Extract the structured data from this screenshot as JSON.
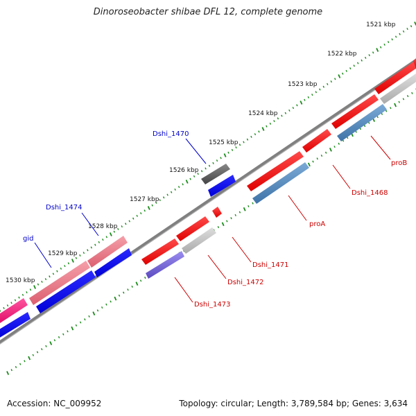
{
  "title": "Dinoroseobacter shibae DFL 12, complete genome",
  "footer": {
    "accession": "Accession: NC_009952",
    "genome_info": "Topology: circular; Length: 3,789,584 bp; Genes: 3,634"
  },
  "ruler_labels": [
    "1521 kbp",
    "1522 kbp",
    "1523 kbp",
    "1524 kbp",
    "1525 kbp",
    "1526 kbp",
    "1527 kbp",
    "1528 kbp",
    "1529 kbp",
    "1530 kbp"
  ],
  "gene_labels": [
    "Dshi_1470",
    "Dshi_1474",
    "gid",
    "proB",
    "Dshi_1468",
    "proA",
    "Dshi_1471",
    "Dshi_1472",
    "Dshi_1473"
  ],
  "colors": {
    "backbone": "#808080",
    "outer_ticks": "#1a8a1a",
    "forward_gene": "#ee1111",
    "reverse_gene": "#0000ee",
    "forward_label": "#0000cc",
    "reverse_label": "#cc0000",
    "pink_gene": "#e86c80",
    "magenta_gene": "#ee1177",
    "gray_gene": "#bbbbbb",
    "dark_gene": "#555555",
    "steel_gene": "#4f86b8",
    "purple_gene": "#6a5acd"
  }
}
